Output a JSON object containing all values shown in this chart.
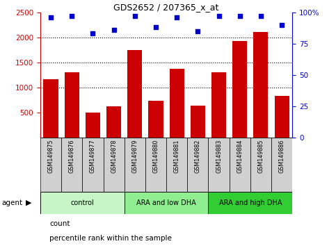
{
  "title": "GDS2652 / 207365_x_at",
  "samples": [
    "GSM149875",
    "GSM149876",
    "GSM149877",
    "GSM149878",
    "GSM149879",
    "GSM149880",
    "GSM149881",
    "GSM149882",
    "GSM149883",
    "GSM149884",
    "GSM149885",
    "GSM149886"
  ],
  "counts": [
    1170,
    1300,
    500,
    620,
    1750,
    740,
    1380,
    645,
    1310,
    1930,
    2110,
    830
  ],
  "percentiles": [
    96,
    97,
    83,
    86,
    97,
    88,
    96,
    85,
    97,
    97,
    97,
    90
  ],
  "groups": [
    {
      "label": "control",
      "start": 0,
      "end": 3,
      "color": "#c8f5c8"
    },
    {
      "label": "ARA and low DHA",
      "start": 4,
      "end": 7,
      "color": "#90ee90"
    },
    {
      "label": "ARA and high DHA",
      "start": 8,
      "end": 11,
      "color": "#32cd32"
    }
  ],
  "bar_color": "#cc0000",
  "dot_color": "#0000cc",
  "left_ylim": [
    0,
    2500
  ],
  "left_yticks": [
    500,
    1000,
    1500,
    2000,
    2500
  ],
  "right_ylim": [
    0,
    100
  ],
  "right_yticks": [
    0,
    25,
    50,
    75,
    100
  ],
  "right_yticklabels": [
    "0",
    "25",
    "50",
    "75",
    "100%"
  ],
  "grid_values": [
    1000,
    1500,
    2000
  ],
  "background_color": "#ffffff",
  "agent_label": "agent",
  "legend_count_label": "count",
  "legend_pct_label": "percentile rank within the sample"
}
